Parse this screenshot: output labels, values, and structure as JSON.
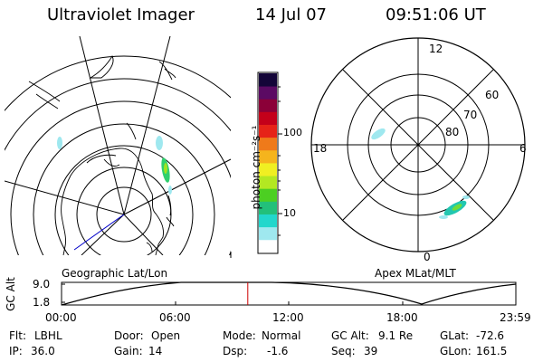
{
  "header": {
    "instrument": "Ultraviolet Imager",
    "date": "14 Jul 07",
    "time": "09:51:06 UT"
  },
  "colorbar": {
    "unit_label": "photon cm⁻²s⁻¹",
    "ticks": [
      "100",
      "10"
    ],
    "colors": [
      "#ffffff",
      "#9fe8ef",
      "#22d7cc",
      "#22c07a",
      "#4ccf22",
      "#b3e822",
      "#f0ef22",
      "#f5b41d",
      "#ef7a1a",
      "#e62318",
      "#c4001a",
      "#8b0038",
      "#5b0a63",
      "#140538"
    ]
  },
  "left_map": {
    "label": "Geographic Lat/Lon"
  },
  "right_map": {
    "label": "Apex MLat/MLT",
    "mlt_labels": {
      "top": "12",
      "left": "18",
      "right": "6",
      "bottom": "0"
    },
    "lat_labels": [
      "80",
      "70",
      "60"
    ]
  },
  "altitude_plot": {
    "ylabel": "GC Alt",
    "yticks": [
      "9.0",
      "1.8"
    ],
    "xticks": [
      "00:00",
      "06:00",
      "12:00",
      "18:00",
      "23:59"
    ],
    "current_time_fraction": 0.41
  },
  "status": {
    "filter": {
      "label": "Flt:",
      "value": "LBHL"
    },
    "ip": {
      "label": "IP:",
      "value": "36.0"
    },
    "door": {
      "label": "Door:",
      "value": "Open"
    },
    "gain": {
      "label": "Gain:",
      "value": "14"
    },
    "mode": {
      "label": "Mode:",
      "value": "Normal"
    },
    "dsp": {
      "label": "Dsp:",
      "value": "-1.6"
    },
    "gc_alt": {
      "label": "GC Alt:",
      "value": "9.1 Re"
    },
    "seq": {
      "label": "Seq:",
      "value": "39"
    },
    "glat": {
      "label": "GLat:",
      "value": "-72.6"
    },
    "glon": {
      "label": "GLon:",
      "value": "161.5"
    }
  }
}
